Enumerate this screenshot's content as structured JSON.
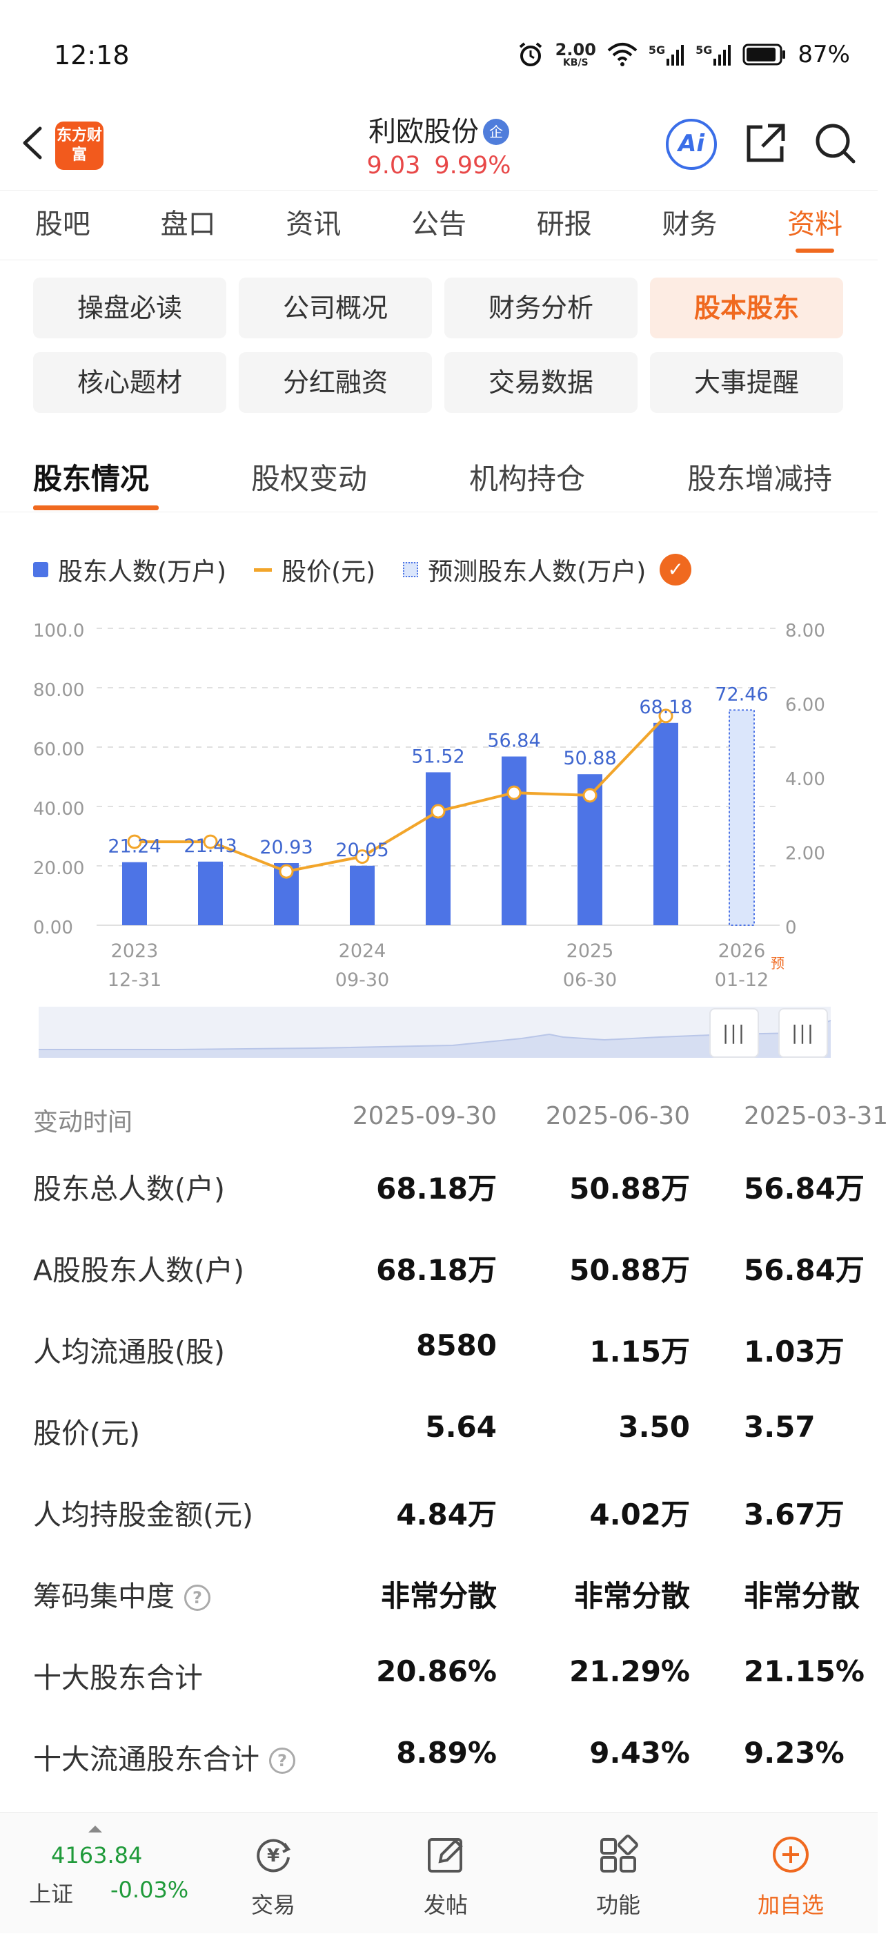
{
  "status_bar": {
    "time": "12:18",
    "net_speed_value": "2.00",
    "net_speed_unit": "KB/S",
    "signal_1": "5G",
    "signal_2": "5G",
    "battery": "87%"
  },
  "header": {
    "logo_text": "东方财富",
    "stock_name": "利欧股份",
    "badge": "企",
    "price": "9.03",
    "change_pct": "9.99%",
    "ai_label": "Ai"
  },
  "main_tabs": [
    {
      "label": "股吧",
      "active": false
    },
    {
      "label": "盘口",
      "active": false
    },
    {
      "label": "资讯",
      "active": false
    },
    {
      "label": "公告",
      "active": false
    },
    {
      "label": "研报",
      "active": false
    },
    {
      "label": "财务",
      "active": false
    },
    {
      "label": "资料",
      "active": true
    }
  ],
  "sub_nav": [
    {
      "label": "操盘必读",
      "active": false
    },
    {
      "label": "公司概况",
      "active": false
    },
    {
      "label": "财务分析",
      "active": false
    },
    {
      "label": "股本股东",
      "active": true
    },
    {
      "label": "核心题材",
      "active": false
    },
    {
      "label": "分红融资",
      "active": false
    },
    {
      "label": "交易数据",
      "active": false
    },
    {
      "label": "大事提醒",
      "active": false
    }
  ],
  "section_tabs": [
    {
      "label": "股东情况",
      "active": true
    },
    {
      "label": "股权变动",
      "active": false
    },
    {
      "label": "机构持仓",
      "active": false
    },
    {
      "label": "股东增减持",
      "active": false
    }
  ],
  "legend": {
    "bar": "股东人数(万户)",
    "line": "股价(元)",
    "forecast": "预测股东人数(万户)"
  },
  "chart_data": {
    "type": "bar",
    "series": [
      {
        "name": "股东人数(万户)",
        "type": "bar",
        "values": [
          21.24,
          21.43,
          20.93,
          20.05,
          51.52,
          56.84,
          50.88,
          68.18
        ]
      },
      {
        "name": "股价(元)",
        "type": "line",
        "values": [
          2.25,
          2.25,
          1.45,
          1.85,
          3.07,
          3.57,
          3.5,
          5.64
        ]
      },
      {
        "name": "预测股东人数(万户)",
        "type": "bar",
        "forecast": true,
        "values": [
          null,
          null,
          null,
          null,
          null,
          null,
          null,
          null,
          72.46
        ]
      }
    ],
    "data_labels": [
      "21.24",
      "21.43",
      "20.93",
      "20.05",
      "51.52",
      "56.84",
      "50.88",
      "68.18",
      "72.46"
    ],
    "x_ticks": [
      {
        "index": 0,
        "line1": "2023",
        "line2": "12-31"
      },
      {
        "index": 3,
        "line1": "2024",
        "line2": "09-30"
      },
      {
        "index": 6,
        "line1": "2025",
        "line2": "06-30"
      },
      {
        "index": 8,
        "line1": "2026",
        "line2": "01-12",
        "suffix": "预"
      }
    ],
    "y_left_ticks": [
      "0.00",
      "20.00",
      "40.00",
      "60.00",
      "80.00",
      "100.0"
    ],
    "y_right_ticks": [
      "0",
      "2.00",
      "4.00",
      "6.00",
      "8.00"
    ],
    "ylim_left": [
      0,
      100
    ],
    "ylim_right": [
      0,
      8
    ],
    "grid": true,
    "colors": {
      "bar": "#4d74e6",
      "line": "#f2a52a",
      "forecast_fill": "#dbe6fb"
    }
  },
  "range_handle_glyph": "|||",
  "table": {
    "header": {
      "label": "变动时间",
      "cols": [
        "2025-09-30",
        "2025-06-30",
        "2025-03-31"
      ]
    },
    "rows": [
      {
        "label": "股东总人数(户)",
        "cols": [
          "68.18万",
          "50.88万",
          "56.84万"
        ],
        "help": false
      },
      {
        "label": "A股股东人数(户)",
        "cols": [
          "68.18万",
          "50.88万",
          "56.84万"
        ],
        "help": false
      },
      {
        "label": "人均流通股(股)",
        "cols": [
          "8580",
          "1.15万",
          "1.03万"
        ],
        "help": false
      },
      {
        "label": "股价(元)",
        "cols": [
          "5.64",
          "3.50",
          "3.57"
        ],
        "help": false
      },
      {
        "label": "人均持股金额(元)",
        "cols": [
          "4.84万",
          "4.02万",
          "3.67万"
        ],
        "help": false
      },
      {
        "label": "筹码集中度",
        "cols": [
          "非常分散",
          "非常分散",
          "非常分散"
        ],
        "help": true
      },
      {
        "label": "十大股东合计",
        "cols": [
          "20.86%",
          "21.29%",
          "21.15%"
        ],
        "help": false
      },
      {
        "label": "十大流通股东合计",
        "cols": [
          "8.89%",
          "9.43%",
          "9.23%"
        ],
        "help": true
      }
    ]
  },
  "bottom_bar": {
    "index_value": "4163.84",
    "index_name": "上证",
    "index_change": "-0.03%",
    "items": [
      {
        "label": "交易",
        "icon": "trade-icon"
      },
      {
        "label": "发帖",
        "icon": "post-icon"
      },
      {
        "label": "功能",
        "icon": "apps-icon"
      },
      {
        "label": "加自选",
        "icon": "add-watchlist-icon"
      }
    ]
  }
}
